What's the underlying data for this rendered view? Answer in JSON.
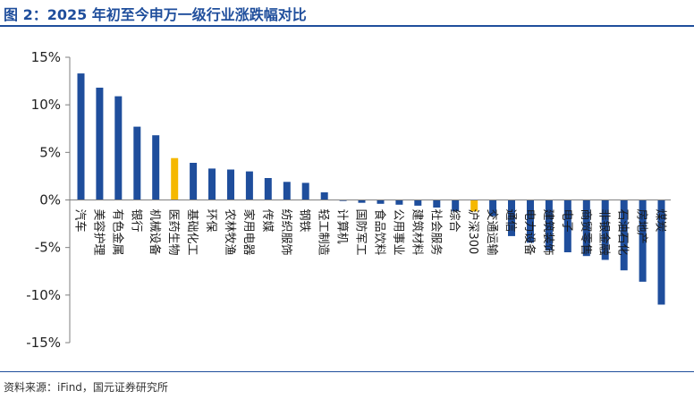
{
  "header": {
    "title": "图 2：2025 年初至今申万一级行业涨跌幅对比"
  },
  "footer": {
    "source": "资料来源：iFind，国元证券研究所"
  },
  "colors": {
    "title": "#1f4e9c",
    "bar": "#1f4e9c",
    "highlight": "#f5b800",
    "axis": "#7f7f7f"
  },
  "chart_data": {
    "type": "bar",
    "title": "2025 年初至今申万一级行业涨跌幅对比",
    "xlabel": "",
    "ylabel": "",
    "ylim": [
      -15,
      15
    ],
    "yticks": [
      15,
      10,
      5,
      0,
      -5,
      -10,
      -15
    ],
    "ytick_labels": [
      "15%",
      "10%",
      "5%",
      "0%",
      "-5%",
      "-10%",
      "-15%"
    ],
    "grid": false,
    "highlighted": [
      "医药生物",
      "沪深300"
    ],
    "categories": [
      "汽车",
      "美容护理",
      "有色金属",
      "银行",
      "机械设备",
      "医药生物",
      "基础化工",
      "环保",
      "农林牧渔",
      "家用电器",
      "传媒",
      "纺织服饰",
      "钢铁",
      "轻工制造",
      "计算机",
      "国防军工",
      "食品饮料",
      "公用事业",
      "建筑材料",
      "社会服务",
      "综合",
      "沪深300",
      "交通运输",
      "通信",
      "电力设备",
      "建筑装饰",
      "电子",
      "商贸零售",
      "非银金融",
      "石油石化",
      "房地产",
      "煤炭"
    ],
    "values": [
      13.3,
      11.8,
      10.9,
      7.7,
      6.8,
      4.4,
      3.9,
      3.3,
      3.2,
      3.0,
      2.3,
      1.9,
      1.8,
      0.8,
      -0.1,
      -0.3,
      -0.4,
      -0.5,
      -0.6,
      -0.8,
      -1.2,
      -1.2,
      -1.7,
      -3.8,
      -4.5,
      -5.3,
      -5.5,
      -5.9,
      -6.3,
      -7.4,
      -8.6,
      -11.0
    ]
  }
}
